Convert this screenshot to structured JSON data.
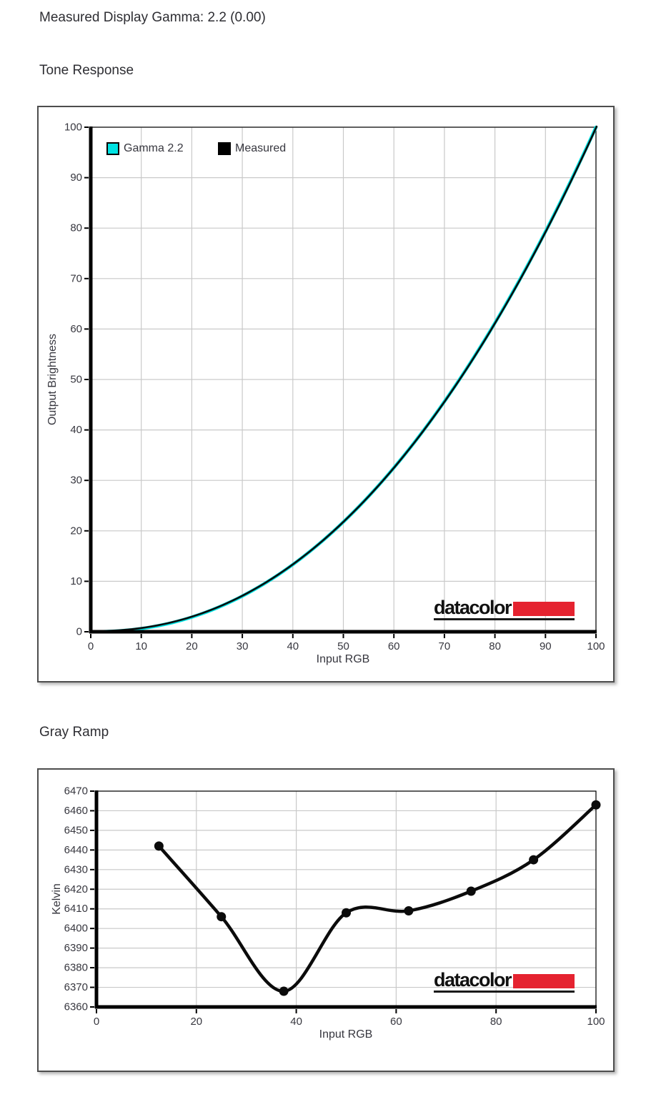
{
  "page": {
    "gamma_line": "Measured Display Gamma: 2.2 (0.00)",
    "tone_response_title": "Tone Response",
    "gray_ramp_title": "Gray Ramp"
  },
  "logo": {
    "text": "datacolor"
  },
  "colors": {
    "accent_cyan": "#00e3e3",
    "series_black": "#0b0b0b",
    "logo_red": "#e52330",
    "grid": "#c9c9c9",
    "axis": "#000000",
    "text": "#37373f"
  },
  "chart_data": [
    {
      "type": "line",
      "title": "Tone Response",
      "xlabel": "Input RGB",
      "ylabel": "Output Brightness",
      "xlim": [
        0,
        100
      ],
      "ylim": [
        0,
        100
      ],
      "xticks": [
        0,
        10,
        20,
        30,
        40,
        50,
        60,
        70,
        80,
        90,
        100
      ],
      "yticks": [
        0,
        10,
        20,
        30,
        40,
        50,
        60,
        70,
        80,
        90,
        100
      ],
      "grid": true,
      "legend_position": "top-left",
      "legend": [
        {
          "label": "Gamma 2.2",
          "color": "#00e3e3"
        },
        {
          "label": "Measured",
          "color": "#000000"
        }
      ],
      "x": [
        0,
        5,
        10,
        15,
        20,
        25,
        30,
        35,
        40,
        45,
        50,
        55,
        60,
        65,
        70,
        75,
        80,
        85,
        90,
        95,
        100
      ],
      "series": [
        {
          "name": "Gamma 2.2",
          "color": "#00e3e3",
          "gamma": 2.2,
          "values": [
            0,
            0.1,
            0.6,
            1.5,
            2.9,
            4.7,
            7.1,
            9.9,
            13.3,
            17.3,
            21.8,
            26.8,
            32.5,
            38.8,
            45.6,
            53.1,
            61.2,
            69.9,
            79.3,
            89.3,
            100
          ]
        },
        {
          "name": "Measured",
          "color": "#000000",
          "gamma": 2.2,
          "values": [
            0,
            0.1,
            0.6,
            1.5,
            2.9,
            4.7,
            7.1,
            9.9,
            13.3,
            17.3,
            21.8,
            26.8,
            32.5,
            38.8,
            45.6,
            53.1,
            61.2,
            69.9,
            79.3,
            89.3,
            100
          ]
        }
      ]
    },
    {
      "type": "line",
      "title": "Gray Ramp",
      "xlabel": "Input RGB",
      "ylabel": "Kelvin",
      "xlim": [
        0,
        100
      ],
      "ylim": [
        6360,
        6470
      ],
      "xticks": [
        0,
        20,
        40,
        60,
        80,
        100
      ],
      "yticks": [
        6360,
        6370,
        6380,
        6390,
        6400,
        6410,
        6420,
        6430,
        6440,
        6450,
        6460,
        6470
      ],
      "grid": true,
      "marker": "circle",
      "x": [
        12.5,
        25,
        37.5,
        50,
        62.5,
        75,
        87.5,
        100
      ],
      "values": [
        6442,
        6406,
        6368,
        6408,
        6409,
        6419,
        6435,
        6463
      ]
    }
  ]
}
